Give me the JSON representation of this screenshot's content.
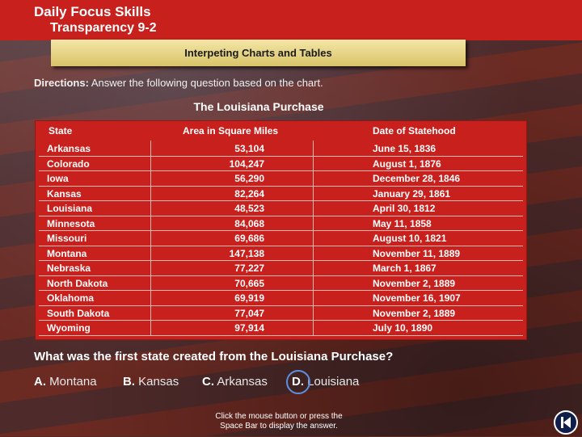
{
  "header": {
    "title_line1": "Daily Focus Skills",
    "title_line2": "Transparency 9-2"
  },
  "banner": {
    "label": "Interpeting Charts and Tables"
  },
  "directions": {
    "label": "Directions:",
    "text": "Answer the following question based on the chart."
  },
  "table": {
    "title": "The Louisiana Purchase",
    "columns": [
      "State",
      "Area in Square Miles",
      "Date of Statehood"
    ],
    "rows": [
      [
        "Arkansas",
        "53,104",
        "June 15, 1836"
      ],
      [
        "Colorado",
        "104,247",
        "August 1, 1876"
      ],
      [
        "Iowa",
        "56,290",
        "December 28, 1846"
      ],
      [
        "Kansas",
        "82,264",
        "January 29, 1861"
      ],
      [
        "Louisiana",
        "48,523",
        "April 30, 1812"
      ],
      [
        "Minnesota",
        "84,068",
        "May 11, 1858"
      ],
      [
        "Missouri",
        "69,686",
        "August 10, 1821"
      ],
      [
        "Montana",
        "147,138",
        "November 11, 1889"
      ],
      [
        "Nebraska",
        "77,227",
        "March 1, 1867"
      ],
      [
        "North Dakota",
        "70,665",
        "November 2, 1889"
      ],
      [
        "Oklahoma",
        "69,919",
        "November 16, 1907"
      ],
      [
        "South Dakota",
        "77,047",
        "November 2, 1889"
      ],
      [
        "Wyoming",
        "97,914",
        "July 10, 1890"
      ]
    ]
  },
  "question": "What was the first state created from the Louisiana Purchase?",
  "choices": [
    {
      "letter": "A.",
      "text": "Montana"
    },
    {
      "letter": "B.",
      "text": "Kansas"
    },
    {
      "letter": "C.",
      "text": "Arkansas"
    },
    {
      "letter": "D.",
      "text": "Louisiana"
    }
  ],
  "footer": {
    "line1": "Click the mouse button or press the",
    "line2": "Space Bar to display the answer."
  },
  "colors": {
    "header_red": "#c8201c",
    "banner_yellow": "#e6d482",
    "answer_circle": "#5e8fe0"
  },
  "icons": {
    "nav": "return-icon"
  }
}
